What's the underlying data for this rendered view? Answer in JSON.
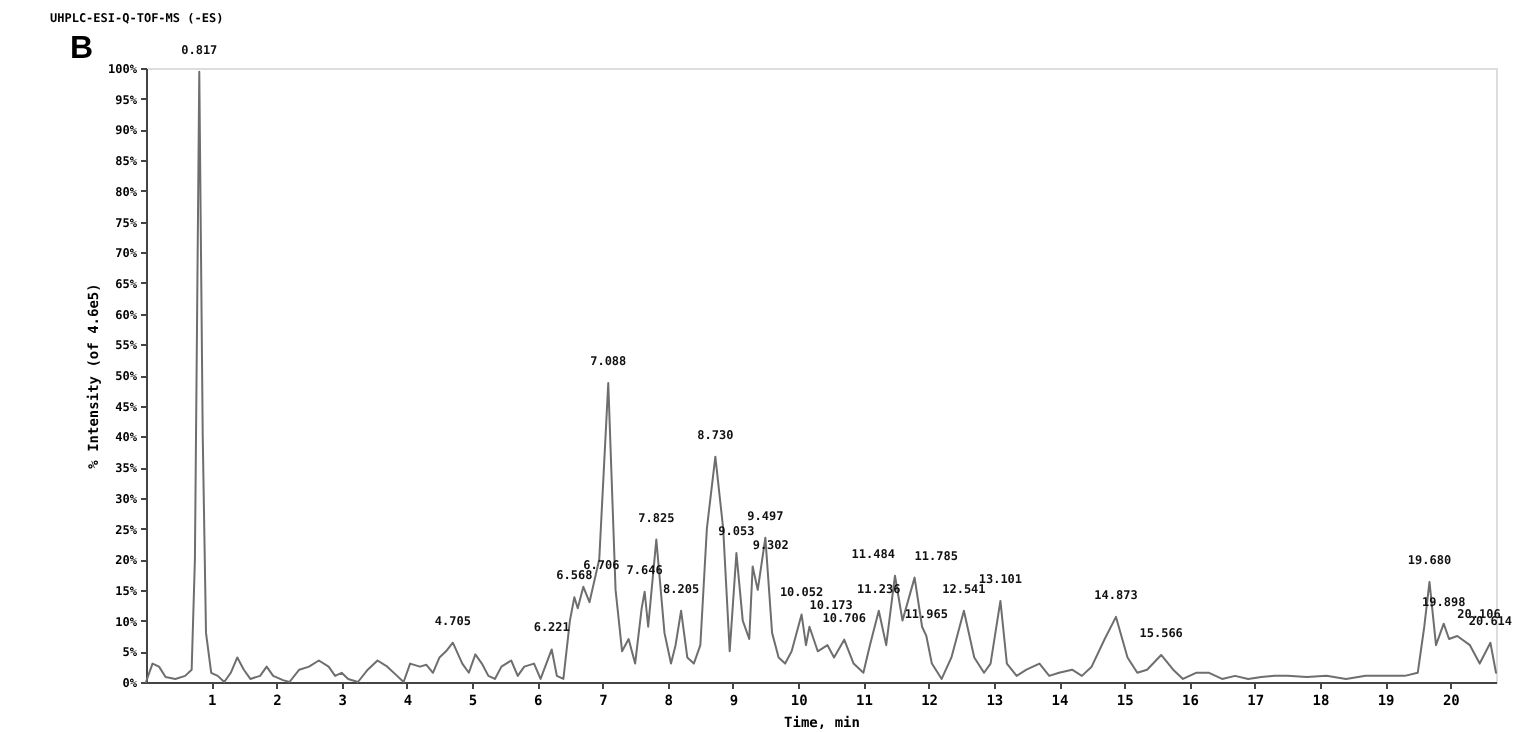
{
  "chart_data": {
    "type": "line",
    "title": "UHPLC-ESI-Q-TOF-MS (-ES)",
    "xlabel": "Time, min",
    "ylabel": "% Intensity (of 4.6e5)",
    "x": [
      0,
      0.1,
      0.2,
      0.3,
      0.45,
      0.6,
      0.7,
      0.75,
      0.817,
      0.87,
      0.92,
      1.0,
      1.1,
      1.2,
      1.3,
      1.4,
      1.5,
      1.6,
      1.75,
      1.85,
      1.95,
      2.1,
      2.2,
      2.35,
      2.5,
      2.65,
      2.8,
      2.9,
      3.0,
      3.1,
      3.25,
      3.4,
      3.55,
      3.7,
      3.85,
      3.95,
      4.05,
      4.2,
      4.3,
      4.4,
      4.5,
      4.6,
      4.705,
      4.85,
      4.95,
      5.05,
      5.15,
      5.25,
      5.35,
      5.45,
      5.6,
      5.7,
      5.8,
      5.95,
      6.05,
      6.221,
      6.3,
      6.4,
      6.5,
      6.568,
      6.62,
      6.706,
      6.8,
      6.95,
      7.088,
      7.2,
      7.3,
      7.4,
      7.5,
      7.6,
      7.646,
      7.7,
      7.825,
      7.95,
      8.05,
      8.12,
      8.205,
      8.3,
      8.4,
      8.5,
      8.6,
      8.73,
      8.85,
      8.95,
      9.053,
      9.15,
      9.25,
      9.302,
      9.38,
      9.497,
      9.6,
      9.7,
      9.8,
      9.9,
      10.052,
      10.12,
      10.173,
      10.3,
      10.45,
      10.55,
      10.706,
      10.85,
      11.0,
      11.1,
      11.236,
      11.35,
      11.484,
      11.6,
      11.785,
      11.9,
      11.965,
      12.05,
      12.2,
      12.35,
      12.541,
      12.7,
      12.85,
      12.95,
      13.101,
      13.2,
      13.35,
      13.5,
      13.7,
      13.85,
      14.0,
      14.2,
      14.35,
      14.5,
      14.7,
      14.873,
      15.05,
      15.2,
      15.35,
      15.566,
      15.75,
      15.9,
      16.1,
      16.3,
      16.5,
      16.7,
      16.9,
      17.1,
      17.3,
      17.5,
      17.8,
      18.1,
      18.4,
      18.7,
      19.0,
      19.3,
      19.5,
      19.6,
      19.68,
      19.78,
      19.898,
      19.98,
      20.106,
      20.3,
      20.45,
      20.614,
      20.7
    ],
    "series": [
      {
        "color": "#6e6e6e",
        "values": [
          0,
          3,
          2.5,
          0.8,
          0.5,
          1,
          2,
          20,
          99.4,
          40,
          8,
          1.5,
          1,
          0,
          1.5,
          4,
          2,
          0.5,
          1,
          2.5,
          1,
          0.3,
          0,
          2,
          2.5,
          3.5,
          2.5,
          1,
          1.5,
          0.5,
          0,
          2,
          3.5,
          2.5,
          1,
          0,
          3,
          2.5,
          2.8,
          1.5,
          4,
          5,
          6.4,
          3,
          1.5,
          4.5,
          3,
          1,
          0.5,
          2.5,
          3.5,
          1,
          2.5,
          3,
          0.5,
          5.3,
          1,
          0.5,
          10,
          13.8,
          12,
          15.5,
          13,
          20,
          48.7,
          15,
          5,
          7,
          3,
          12,
          14.7,
          9,
          23.2,
          8,
          3,
          6,
          11.6,
          4,
          3,
          6,
          25,
          36.7,
          25,
          5,
          21,
          10,
          7,
          18.8,
          15,
          23.5,
          8,
          4,
          3,
          5,
          11,
          6,
          9,
          5,
          6,
          4,
          6.9,
          3,
          1.5,
          6,
          11.6,
          6,
          17.3,
          10,
          17,
          9,
          7.5,
          3,
          0.5,
          4,
          11.6,
          4,
          1.5,
          3,
          13.2,
          3,
          1,
          2,
          3,
          1,
          1.5,
          2,
          1,
          2.5,
          7,
          10.6,
          4,
          1.5,
          2,
          4.4,
          2,
          0.5,
          1.5,
          1.5,
          0.5,
          1,
          0.5,
          0.8,
          1,
          1,
          0.8,
          1,
          0.5,
          1,
          1,
          1,
          1.5,
          9,
          16.3,
          6,
          9.5,
          7,
          7.5,
          6,
          3,
          6.4,
          1.5
        ]
      }
    ],
    "xlim": [
      0,
      20.7
    ],
    "xticks": [
      1,
      2,
      3,
      4,
      5,
      6,
      7,
      8,
      9,
      10,
      11,
      12,
      13,
      14,
      15,
      16,
      17,
      18,
      19,
      20
    ],
    "ylim": [
      0,
      100
    ],
    "yticks": [
      {
        "value": 0,
        "label": "0%"
      },
      {
        "value": 5,
        "label": "5%"
      },
      {
        "value": 10,
        "label": "10%"
      },
      {
        "value": 15,
        "label": "15%"
      },
      {
        "value": 20,
        "label": "20%"
      },
      {
        "value": 25,
        "label": "25%"
      },
      {
        "value": 30,
        "label": "30%"
      },
      {
        "value": 35,
        "label": "35%"
      },
      {
        "value": 40,
        "label": "40%"
      },
      {
        "value": 45,
        "label": "45%"
      },
      {
        "value": 50,
        "label": "50%"
      },
      {
        "value": 55,
        "label": "55%"
      },
      {
        "value": 60,
        "label": "60%"
      },
      {
        "value": 65,
        "label": "65%"
      },
      {
        "value": 70,
        "label": "70%"
      },
      {
        "value": 75,
        "label": "75%"
      },
      {
        "value": 80,
        "label": "80%"
      },
      {
        "value": 85,
        "label": "85%"
      },
      {
        "value": 90,
        "label": "90%"
      },
      {
        "value": 95,
        "label": "95%"
      },
      {
        "value": 100,
        "label": "100%"
      }
    ],
    "grid": false,
    "marker": "none",
    "line_style": "solid",
    "annotations": [
      "B",
      {
        "text": "0.817",
        "x": 0.817,
        "y": 99.4
      },
      {
        "text": "4.705",
        "x": 4.705,
        "y": 6.4
      },
      {
        "text": "6.221",
        "x": 6.221,
        "y": 5.3
      },
      {
        "text": "6.568",
        "x": 6.568,
        "y": 13.8
      },
      {
        "text": "6.706",
        "x": 6.706,
        "y": 15.5
      },
      {
        "text": "7.088",
        "x": 7.088,
        "y": 48.7
      },
      {
        "text": "7.646",
        "x": 7.646,
        "y": 14.7
      },
      {
        "text": "7.825",
        "x": 7.825,
        "y": 23.2
      },
      {
        "text": "8.205",
        "x": 8.205,
        "y": 11.6
      },
      {
        "text": "8.730",
        "x": 8.73,
        "y": 36.7
      },
      {
        "text": "9.053",
        "x": 9.053,
        "y": 21
      },
      {
        "text": "9.302",
        "x": 9.302,
        "y": 18.8
      },
      {
        "text": "9.497",
        "x": 9.497,
        "y": 23.5
      },
      {
        "text": "10.052",
        "x": 10.052,
        "y": 11
      },
      {
        "text": "10.173",
        "x": 10.173,
        "y": 9
      },
      {
        "text": "10.706",
        "x": 10.706,
        "y": 6.9
      },
      {
        "text": "11.236",
        "x": 11.236,
        "y": 11.6
      },
      {
        "text": "11.484",
        "x": 11.484,
        "y": 17.3
      },
      {
        "text": "11.785",
        "x": 11.785,
        "y": 17
      },
      {
        "text": "11.965",
        "x": 11.965,
        "y": 7.5
      },
      {
        "text": "12.541",
        "x": 12.541,
        "y": 11.6
      },
      {
        "text": "13.101",
        "x": 13.101,
        "y": 13.2
      },
      {
        "text": "14.873",
        "x": 14.873,
        "y": 10.6
      },
      {
        "text": "15.566",
        "x": 15.566,
        "y": 4.4
      },
      {
        "text": "19.680",
        "x": 19.68,
        "y": 16.3
      },
      {
        "text": "19.898",
        "x": 19.898,
        "y": 9.5
      },
      {
        "text": "20.106",
        "x": 20.106,
        "y": 7.5
      },
      {
        "text": "20.614",
        "x": 20.614,
        "y": 6.4
      }
    ]
  }
}
